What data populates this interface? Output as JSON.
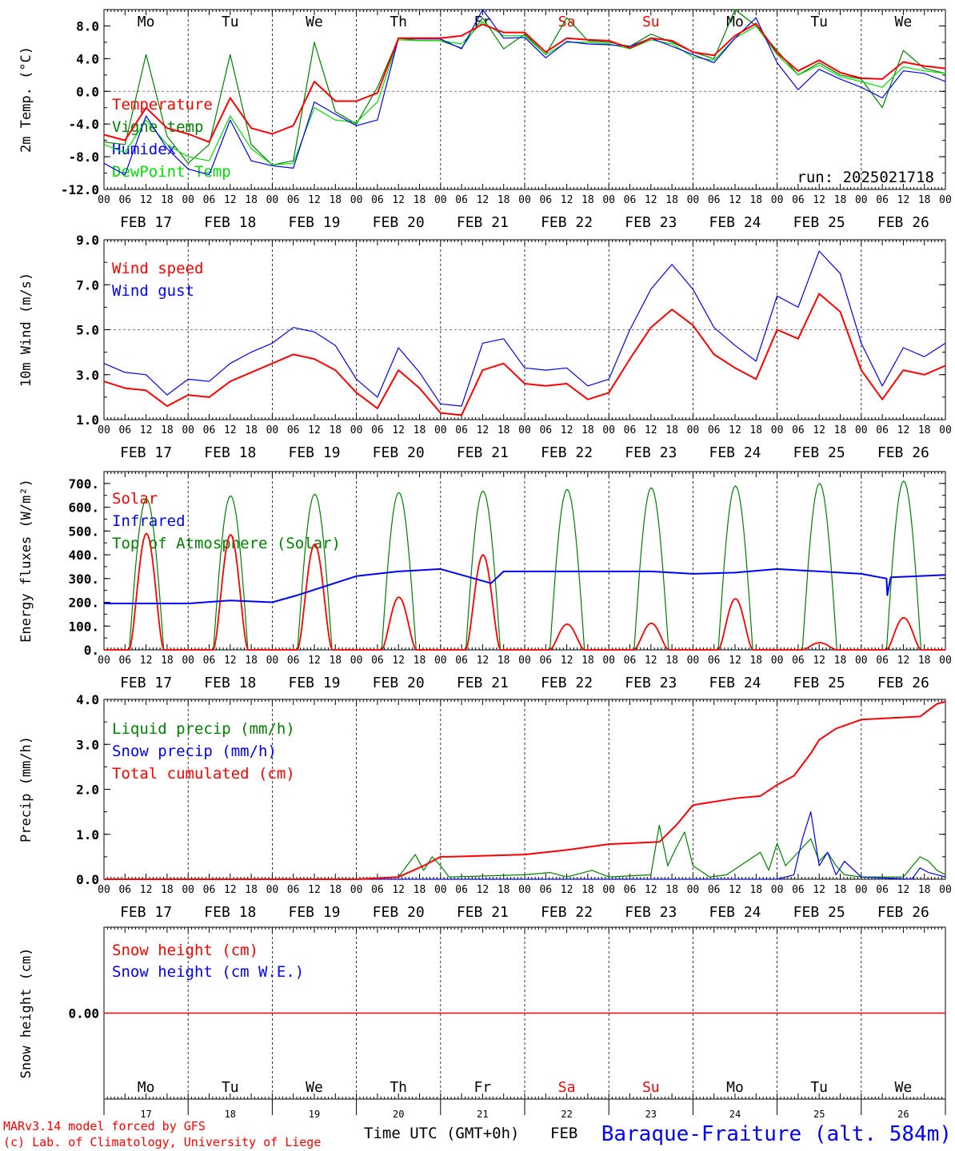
{
  "colors": {
    "red": "#ff0000",
    "blue": "#0000ff",
    "green": "#008000",
    "lightgreen": "#00dd00",
    "weekend": "#ff0000"
  },
  "dates": [
    "FEB 17",
    "FEB 18",
    "FEB 19",
    "FEB 20",
    "FEB 21",
    "FEB 22",
    "FEB 23",
    "FEB 24",
    "FEB 25",
    "FEB 26"
  ],
  "hour_labels": [
    "00",
    "06",
    "12",
    "18"
  ],
  "final_hour_label": "00",
  "day_names": [
    {
      "label": "Mo",
      "weekend": false
    },
    {
      "label": "Tu",
      "weekend": false
    },
    {
      "label": "We",
      "weekend": false
    },
    {
      "label": "Th",
      "weekend": false
    },
    {
      "label": "Fr",
      "weekend": false
    },
    {
      "label": "Sa",
      "weekend": true
    },
    {
      "label": "Su",
      "weekend": true
    },
    {
      "label": "Mo",
      "weekend": false
    },
    {
      "label": "Tu",
      "weekend": false
    },
    {
      "label": "We",
      "weekend": false
    }
  ],
  "day_numbers": [
    "17",
    "18",
    "19",
    "20",
    "21",
    "22",
    "23",
    "24",
    "25",
    "26"
  ],
  "footer": {
    "model": "MARv3.14 model forced by GFS",
    "lab": "(c) Lab. of Climatology, University of Liege",
    "xaxis": "Time UTC (GMT+0h)",
    "month": "FEB",
    "station": "Baraque-Fraiture (alt. 584m)"
  },
  "chart_data": [
    {
      "type": "line",
      "ylabel": "2m Temp. (°C)",
      "ylim": [
        -12,
        10
      ],
      "yticks": [
        "8.0",
        "4.0",
        "0.0",
        "-4.0",
        "-8.0",
        "-12.0"
      ],
      "yticks_values": [
        8,
        4,
        0,
        -4,
        -8,
        -12
      ],
      "hgrid": [
        0
      ],
      "run_text": "run: 2025021718",
      "legend": [
        "Temperature",
        "Vigne temp",
        "Humidex",
        "DewPoint Temp"
      ],
      "x_days": [
        0,
        0.25,
        0.5,
        0.75,
        1,
        1.25,
        1.5,
        1.75,
        2,
        2.25,
        2.5,
        2.75,
        3,
        3.25,
        3.5,
        3.75,
        4,
        4.25,
        4.5,
        4.75,
        5,
        5.25,
        5.5,
        5.75,
        6,
        6.25,
        6.5,
        6.75,
        7,
        7.25,
        7.5,
        7.75,
        8,
        8.25,
        8.5,
        8.75,
        9,
        9.25,
        9.5,
        9.75,
        10
      ],
      "series": [
        {
          "name": "Temperature",
          "color": "red",
          "values": [
            -5.3,
            -6,
            -2,
            -4.5,
            -5.2,
            -6.2,
            -0.8,
            -4.5,
            -5.2,
            -4.2,
            1.2,
            -1.2,
            -1.2,
            -0.2,
            6.5,
            6.5,
            6.5,
            6.8,
            8.2,
            7.2,
            7.2,
            4.8,
            6.5,
            6.3,
            6.2,
            5.3,
            6.5,
            6.2,
            4.8,
            4.4,
            6.8,
            8.3,
            4.7,
            2.5,
            3.8,
            2.3,
            1.6,
            1.5,
            3.6,
            3.1,
            2.8
          ]
        },
        {
          "name": "Vigne temp",
          "color": "green",
          "values": [
            -6.2,
            -6.5,
            4.5,
            -5.5,
            -8.8,
            -6.5,
            4.5,
            -6.5,
            -9,
            -8.5,
            6,
            -2.5,
            -4,
            0.5,
            6.5,
            6.2,
            6.2,
            5.3,
            9,
            5.2,
            7,
            4.5,
            9,
            6.2,
            6,
            5.5,
            7,
            6,
            4.8,
            4,
            10,
            8,
            5,
            2,
            3.5,
            2,
            1.5,
            -2,
            5,
            2.8,
            2.2
          ]
        },
        {
          "name": "Humidex",
          "color": "blue",
          "values": [
            -8.8,
            -10.2,
            -3,
            -7,
            -9.5,
            -10.2,
            -3.5,
            -8.5,
            -9.1,
            -9.4,
            -1.3,
            -2.8,
            -4.2,
            -3.5,
            6.5,
            6.4,
            6.4,
            5.2,
            10,
            6.5,
            6.6,
            4.1,
            6.1,
            5.8,
            5.7,
            5.5,
            6.5,
            5.5,
            4.5,
            3.5,
            6.5,
            9,
            3.5,
            0.2,
            2.7,
            1.5,
            0.5,
            -0.8,
            2.5,
            2.2,
            1.2
          ]
        },
        {
          "name": "DewPoint Temp",
          "color": "lightgreen",
          "values": [
            -6.5,
            -7.5,
            -3.5,
            -6.5,
            -8,
            -8.5,
            -3,
            -7,
            -9,
            -8.8,
            -2,
            -3.5,
            -3.8,
            -1.3,
            6.3,
            6.2,
            6.2,
            5.8,
            8.5,
            6.8,
            6.8,
            4.5,
            6,
            6,
            5.8,
            5.2,
            6.3,
            5.8,
            4.2,
            3.8,
            6.5,
            8,
            4.5,
            2,
            3.2,
            1.8,
            1.2,
            0.5,
            3,
            2.5,
            2.2
          ]
        }
      ]
    },
    {
      "type": "line",
      "ylabel": "10m Wind (m/s)",
      "ylim": [
        1,
        9
      ],
      "yticks": [
        "9.0",
        "7.0",
        "5.0",
        "3.0",
        "1.0"
      ],
      "yticks_values": [
        9,
        7,
        5,
        3,
        1
      ],
      "hgrid": [
        5
      ],
      "legend": [
        "Wind speed",
        "Wind gust"
      ],
      "x_days": [
        0,
        0.25,
        0.5,
        0.75,
        1,
        1.25,
        1.5,
        1.75,
        2,
        2.25,
        2.5,
        2.75,
        3,
        3.25,
        3.5,
        3.75,
        4,
        4.25,
        4.5,
        4.75,
        5,
        5.25,
        5.5,
        5.75,
        6,
        6.25,
        6.5,
        6.75,
        7,
        7.25,
        7.5,
        7.75,
        8,
        8.25,
        8.5,
        8.75,
        9,
        9.25,
        9.5,
        9.75,
        10
      ],
      "series": [
        {
          "name": "Wind speed",
          "color": "red",
          "values": [
            2.7,
            2.4,
            2.3,
            1.6,
            2.1,
            2,
            2.7,
            3.1,
            3.5,
            3.9,
            3.7,
            3.2,
            2.2,
            1.5,
            3.2,
            2.4,
            1.3,
            1.2,
            3.2,
            3.5,
            2.6,
            2.5,
            2.6,
            1.9,
            2.2,
            3.7,
            5.1,
            5.9,
            5.2,
            3.9,
            3.3,
            2.8,
            5,
            4.6,
            6.6,
            5.8,
            3.2,
            1.9,
            3.2,
            3,
            3.4
          ]
        },
        {
          "name": "Wind gust",
          "color": "blue",
          "values": [
            3.5,
            3.1,
            3,
            2.1,
            2.8,
            2.7,
            3.5,
            4,
            4.4,
            5.1,
            4.9,
            4.3,
            2.8,
            2,
            4.2,
            3.1,
            1.7,
            1.6,
            4.4,
            4.6,
            3.3,
            3.2,
            3.3,
            2.5,
            2.8,
            5,
            6.8,
            7.9,
            6.8,
            5.1,
            4.3,
            3.6,
            6.5,
            6,
            8.5,
            7.5,
            4.4,
            2.5,
            4.2,
            3.8,
            4.4
          ]
        }
      ]
    },
    {
      "type": "line",
      "ylabel": "Energy fluxes (W/m²)",
      "ylim": [
        0,
        750
      ],
      "yticks": [
        "700.",
        "600.",
        "500.",
        "400.",
        "300.",
        "200.",
        "100.",
        "0."
      ],
      "yticks_values": [
        700,
        600,
        500,
        400,
        300,
        200,
        100,
        0
      ],
      "hgrid": [],
      "legend": [
        "Solar",
        "Infrared",
        "Top of Atmosphere (Solar)"
      ],
      "sun_rise": 0.3,
      "sun_set": 0.71,
      "toa_peaks": [
        635,
        648,
        655,
        662,
        668,
        675,
        682,
        690,
        700,
        710
      ],
      "solar_peaks": [
        490,
        485,
        445,
        222,
        400,
        108,
        112,
        215,
        30,
        135
      ],
      "infrared": {
        "x_days": [
          0,
          1,
          1.5,
          2,
          2.3,
          3,
          3.5,
          4,
          4.6,
          4.75,
          5,
          6,
          6.5,
          7,
          7.5,
          8,
          9,
          9.3,
          9.31,
          9.35,
          10
        ],
        "values": [
          195,
          195,
          208,
          200,
          230,
          310,
          330,
          340,
          280,
          330,
          330,
          330,
          330,
          320,
          325,
          340,
          320,
          300,
          230,
          305,
          315
        ]
      }
    },
    {
      "type": "line",
      "ylabel": "Precip (mm/h)",
      "ylim": [
        0,
        4
      ],
      "yticks": [
        "4.0",
        "3.0",
        "2.0",
        "1.0",
        "0.0"
      ],
      "yticks_values": [
        4,
        3,
        2,
        1,
        0
      ],
      "hgrid": [],
      "legend": [
        "Liquid precip (mm/h)",
        "Snow precip (mm/h)",
        "Total cumulated (cm)"
      ],
      "series": [
        {
          "name": "Liquid precip (mm/h)",
          "color": "green",
          "x_days": [
            0,
            3,
            3.5,
            3.7,
            3.8,
            3.9,
            4,
            4.1,
            5,
            5.3,
            5.5,
            5.8,
            6,
            6.5,
            6.6,
            6.7,
            6.8,
            6.9,
            7,
            7.2,
            7.4,
            7.8,
            7.9,
            8,
            8.1,
            8.2,
            8.3,
            8.4,
            8.5,
            8.6,
            8.7,
            8.8,
            9,
            9.5,
            9.7,
            9.8,
            9.9,
            10
          ],
          "values": [
            0,
            0,
            0.05,
            0.55,
            0.2,
            0.5,
            0.3,
            0.05,
            0.1,
            0.15,
            0.05,
            0.2,
            0.05,
            0.1,
            1.2,
            0.3,
            0.7,
            1.05,
            0.3,
            0.05,
            0.1,
            0.6,
            0.2,
            0.8,
            0.3,
            0.5,
            0.7,
            0.9,
            0.4,
            0.6,
            0.3,
            0.1,
            0.05,
            0.05,
            0.5,
            0.4,
            0.2,
            0.1
          ]
        },
        {
          "name": "Snow precip (mm/h)",
          "color": "blue",
          "x_days": [
            0,
            8,
            8.2,
            8.3,
            8.4,
            8.5,
            8.6,
            8.7,
            8.8,
            9,
            9.6,
            9.7,
            9.8,
            10
          ],
          "values": [
            0,
            0,
            0.1,
            0.9,
            1.5,
            0.3,
            0.6,
            0.1,
            0.4,
            0.05,
            0,
            0.25,
            0.15,
            0.05
          ]
        },
        {
          "name": "Total cumulated (cm)",
          "color": "red",
          "x_days": [
            0,
            3,
            3.5,
            3.8,
            4,
            4.1,
            5,
            5.5,
            6,
            6.6,
            6.8,
            7,
            7.5,
            7.8,
            8,
            8.2,
            8.4,
            8.5,
            8.7,
            9,
            9.5,
            9.7,
            9.9,
            10
          ],
          "values": [
            0,
            0,
            0.05,
            0.3,
            0.5,
            0.5,
            0.55,
            0.65,
            0.78,
            0.83,
            1.2,
            1.65,
            1.8,
            1.85,
            2.1,
            2.3,
            2.8,
            3.1,
            3.35,
            3.55,
            3.6,
            3.62,
            3.9,
            3.95
          ]
        }
      ]
    },
    {
      "type": "line",
      "ylabel": "Snow height (cm)",
      "ylim": [
        -1,
        1
      ],
      "yticks": [
        "0.00"
      ],
      "yticks_values": [
        0
      ],
      "hgrid": [],
      "legend": [
        "Snow height (cm)",
        "Snow height (cm W.E.)"
      ],
      "series": [
        {
          "name": "Snow height (cm)",
          "color": "red",
          "x_days": [
            0,
            10
          ],
          "values": [
            0,
            0
          ]
        }
      ]
    }
  ]
}
